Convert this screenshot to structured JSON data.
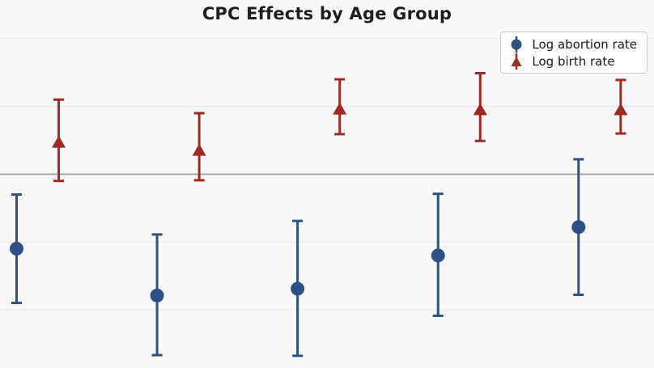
{
  "title": "CPC Effects by Age Group",
  "colors": {
    "background": "#f8f8f8",
    "grid": "#e7e7e7",
    "zero_line": "#a8a8a8",
    "title_text": "#1f1f1f",
    "legend_border": "#cccccc",
    "legend_background": "#ffffff",
    "abortion_series": "#2b5283",
    "birth_series": "#9e2a23"
  },
  "legend": {
    "position": "upper right",
    "items": [
      {
        "label": "Log abortion rate",
        "marker": "circle-icon"
      },
      {
        "label": "Log birth rate",
        "marker": "triangle-up-icon"
      }
    ]
  },
  "chart_data": {
    "type": "scatter",
    "error_bars": true,
    "title": "CPC Effects by Age Group",
    "xlabel": "",
    "ylabel": "",
    "x": [
      1,
      2,
      3,
      4,
      5
    ],
    "x_tick_labels_visible": false,
    "y_tick_labels_visible": false,
    "series": [
      {
        "name": "Log abortion rate",
        "marker": "circle",
        "color": "#2b5283",
        "dodge": -0.15,
        "est": [
          -0.11,
          -0.179,
          -0.169,
          -0.12,
          -0.078
        ],
        "ci_low": [
          -0.19,
          -0.267,
          -0.268,
          -0.209,
          -0.178
        ],
        "ci_high": [
          -0.03,
          -0.089,
          -0.069,
          -0.029,
          0.022
        ]
      },
      {
        "name": "Log birth rate",
        "marker": "triangle-up",
        "color": "#9e2a23",
        "dodge": 0.15,
        "est": [
          0.048,
          0.036,
          0.097,
          0.096,
          0.096
        ],
        "ci_low": [
          -0.01,
          -0.009,
          0.059,
          0.049,
          0.06
        ],
        "ci_high": [
          0.11,
          0.09,
          0.14,
          0.149,
          0.139
        ]
      }
    ],
    "xlim": [
      0.732,
      5.387
    ],
    "ylim": [
      -0.286,
      0.257
    ],
    "gridlines": {
      "visible": true,
      "values": [
        0.2,
        0.1,
        -0.1,
        -0.2
      ]
    },
    "zero_line": {
      "value": 0
    },
    "legend_position": "upper right"
  }
}
